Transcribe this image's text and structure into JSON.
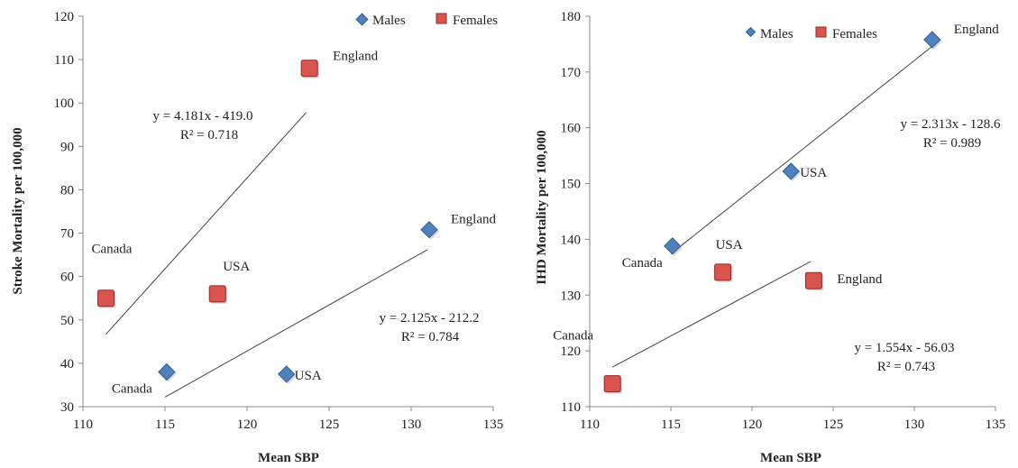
{
  "chart_data": [
    {
      "type": "scatter",
      "xlabel": "Mean SBP",
      "ylabel": "Stroke Mortality per 100,000",
      "xlim": [
        110,
        135
      ],
      "ylim": [
        30,
        120
      ],
      "xticks": [
        "110",
        "115",
        "120",
        "125",
        "130",
        "135"
      ],
      "yticks": [
        "30",
        "40",
        "50",
        "60",
        "70",
        "80",
        "90",
        "100",
        "110",
        "120"
      ],
      "legend": [
        "Males",
        "Females"
      ],
      "legend_position": "top-right",
      "series": [
        {
          "name": "Males",
          "marker": "diamond",
          "color": "#4f81bd",
          "points": [
            {
              "label": "Canada",
              "x": 115.1,
              "y": 38
            },
            {
              "label": "USA",
              "x": 122.4,
              "y": 37.5
            },
            {
              "label": "England",
              "x": 131.1,
              "y": 70.8
            }
          ],
          "trendline": {
            "x": [
              115.0,
              131.0
            ],
            "y": [
              32.2,
              66.2
            ]
          },
          "equation": "y = 2.125x - 212.2",
          "r2": "R² = 0.784"
        },
        {
          "name": "Females",
          "marker": "square",
          "color": "#c0504d",
          "points": [
            {
              "label": "Canada",
              "x": 111.4,
              "y": 55
            },
            {
              "label": "USA",
              "x": 118.2,
              "y": 56
            },
            {
              "label": "England",
              "x": 123.8,
              "y": 108
            }
          ],
          "trendline": {
            "x": [
              111.4,
              123.6
            ],
            "y": [
              46.7,
              97.8
            ]
          },
          "equation": "y = 4.181x - 419.0",
          "r2": "R² = 0.718"
        }
      ]
    },
    {
      "type": "scatter",
      "xlabel": "Mean SBP",
      "ylabel": "IHD Mortality per 100,000",
      "xlim": [
        110,
        135
      ],
      "ylim": [
        110,
        180
      ],
      "xticks": [
        "110",
        "115",
        "120",
        "125",
        "130",
        "135"
      ],
      "yticks": [
        "110",
        "120",
        "130",
        "140",
        "150",
        "160",
        "170",
        "180"
      ],
      "legend": [
        "Males",
        "Females"
      ],
      "legend_position": "top-right",
      "series": [
        {
          "name": "Males",
          "marker": "diamond",
          "color": "#4f81bd",
          "points": [
            {
              "label": "Canada",
              "x": 115.1,
              "y": 138.8
            },
            {
              "label": "USA",
              "x": 122.4,
              "y": 152.2
            },
            {
              "label": "England",
              "x": 131.1,
              "y": 175.8
            }
          ],
          "trendline": {
            "x": [
              115.0,
              131.1
            ],
            "y": [
              137.4,
              174.6
            ]
          },
          "equation": "y = 2.313x - 128.6",
          "r2": "R² = 0.989"
        },
        {
          "name": "Females",
          "marker": "square",
          "color": "#c0504d",
          "points": [
            {
              "label": "Canada",
              "x": 111.4,
              "y": 114.1
            },
            {
              "label": "USA",
              "x": 118.2,
              "y": 134.1
            },
            {
              "label": "England",
              "x": 123.8,
              "y": 132.6
            }
          ],
          "trendline": {
            "x": [
              111.4,
              123.6
            ],
            "y": [
              117.1,
              136.0
            ]
          },
          "equation": "y = 1.554x - 56.03",
          "r2": "R² = 0.743"
        }
      ]
    }
  ]
}
